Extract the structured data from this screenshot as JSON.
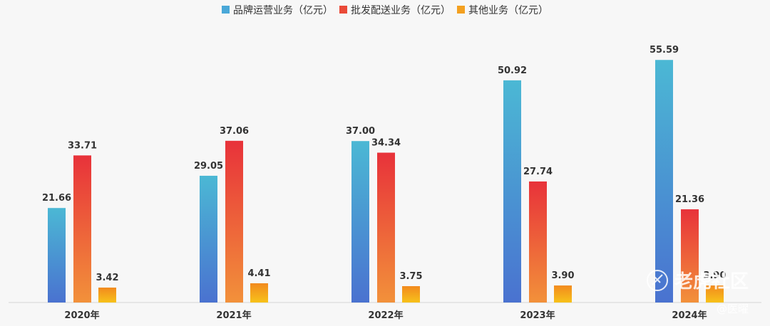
{
  "chart_data": {
    "type": "bar",
    "categories": [
      "2020年",
      "2021年",
      "2022年",
      "2023年",
      "2024年"
    ],
    "series": [
      {
        "name": "品牌运营业务（亿元）",
        "values": [
          21.66,
          29.05,
          37.0,
          50.92,
          55.59
        ],
        "labels": [
          "21.66",
          "29.05",
          "37.00",
          "50.92",
          "55.59"
        ],
        "color_top": "#4bb8d4",
        "color_bottom": "#4a72d0"
      },
      {
        "name": "批发配送业务（亿元）",
        "values": [
          33.71,
          37.06,
          34.34,
          27.74,
          21.36
        ],
        "labels": [
          "33.71",
          "37.06",
          "34.34",
          "27.74",
          "21.36"
        ],
        "color_top": "#e8323a",
        "color_bottom": "#f2913a"
      },
      {
        "name": "其他业务（亿元）",
        "values": [
          3.42,
          4.41,
          3.75,
          3.9,
          3.9
        ],
        "labels": [
          "3.42",
          "4.41",
          "3.75",
          "3.90",
          "3.90"
        ],
        "color_top": "#f28a1e",
        "color_bottom": "#f7c21a"
      }
    ],
    "ylim": [
      0,
      60
    ],
    "grid": false,
    "legend_position": "top-center"
  },
  "watermark": {
    "main": "老虎社区",
    "sub": "@医曜",
    "icon": "tiger-paw-icon"
  }
}
